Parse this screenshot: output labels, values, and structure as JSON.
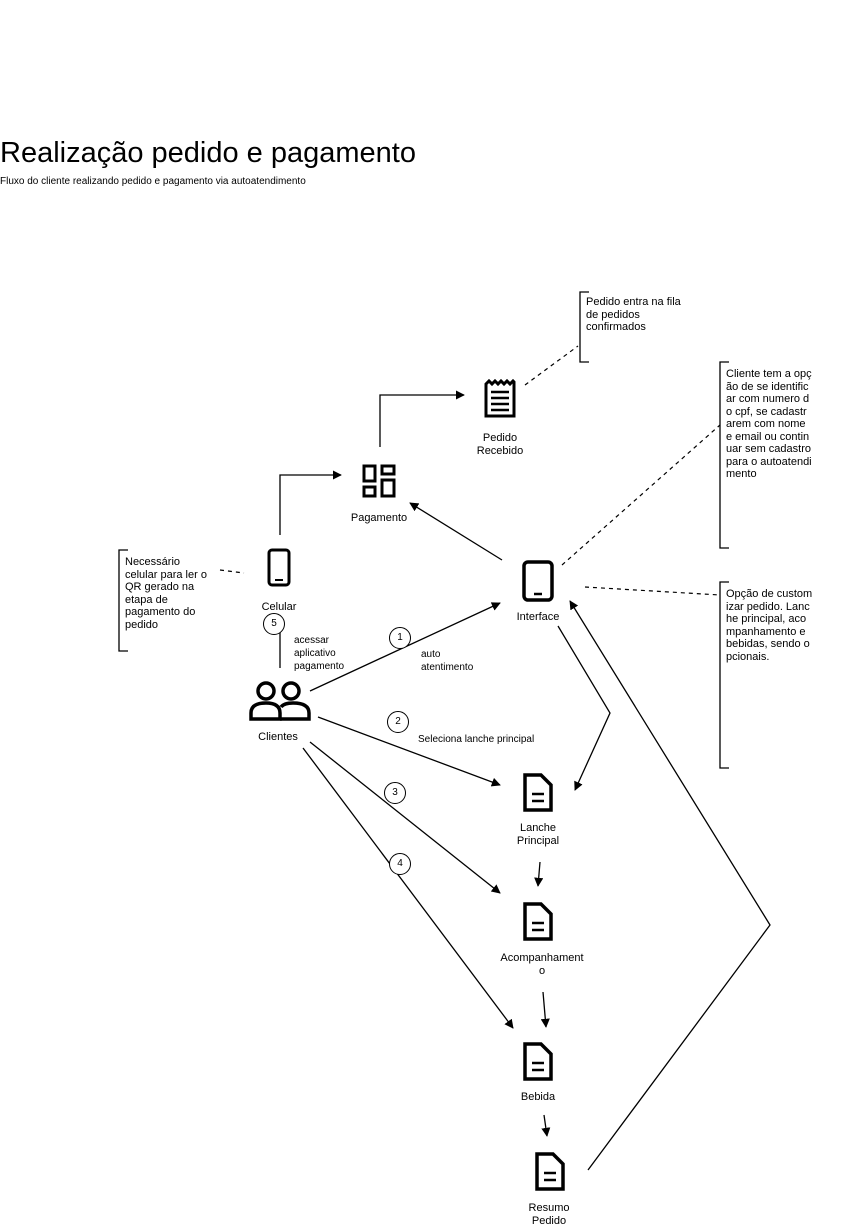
{
  "header": {
    "title": "Realização pedido e pagamento",
    "subtitle": "Fluxo do cliente realizando pedido e pagamento via autoatendimento"
  },
  "nodes": {
    "clientes": "Clientes",
    "interface": "Interface",
    "pagamento": "Pagamento",
    "pedido_recebido": "Pedido Recebido",
    "celular": "Celular",
    "lanche_principal": "Lanche Principal",
    "acompanhamento": "Acompanhamento",
    "bebida": "Bebida",
    "resumo_pedido": "Resumo Pedido"
  },
  "icons": {
    "clientes": "users-icon",
    "interface": "tablet-icon",
    "pagamento": "qr-code-icon",
    "pedido_recebido": "receipt-icon",
    "celular": "smartphone-icon",
    "document": "document-icon"
  },
  "steps": {
    "s1": "1",
    "s2": "2",
    "s3": "3",
    "s4": "4",
    "s5": "5"
  },
  "edge_labels": {
    "auto_atendimento": "auto atentimento",
    "seleciona": "Seleciona lanche principal",
    "acessar": "acessar aplicativo pagamento"
  },
  "notes": {
    "fila": "Pedido entra na fila de pedidos confirmados",
    "cliente_cpf": "Cliente tem a opção de se identificar com numero do cpf, se cadastrarem com nome e email ou continuar sem cadastro para o autoatendimento",
    "customizar": "Opção de customizar pedido. Lanche principal, acompanhamento e bebidas, sendo opcionais.",
    "celular": "Necessário celular para ler o QR gerado na etapa de pagamento do pedido"
  }
}
